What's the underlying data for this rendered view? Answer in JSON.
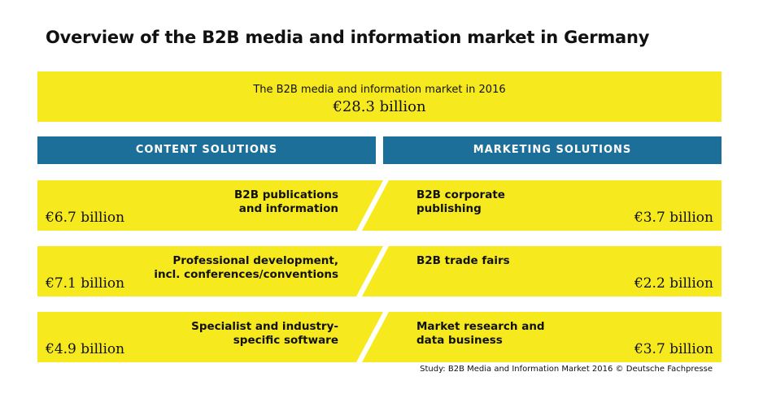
{
  "title": "Overview of the B2B media and information market in Germany",
  "total": {
    "label": "The B2B media and information market in 2016",
    "value": "€28.3 billion"
  },
  "headers": {
    "content": "CONTENT SOLUTIONS",
    "marketing": "MARKETING SOLUTIONS"
  },
  "rows": [
    {
      "left_label": "B2B publications\nand information",
      "left_value": "€6.7 billion",
      "right_label": "B2B corporate\npublishing",
      "right_value": "€3.7 billion"
    },
    {
      "left_label": "Professional development,\nincl. conferences/conventions",
      "left_value": "€7.1 billion",
      "right_label": "B2B trade fairs",
      "right_value": "€2.2 billion"
    },
    {
      "left_label": "Specialist and industry-\nspecific software",
      "left_value": "€4.9 billion",
      "right_label": "Market research and\ndata business",
      "right_value": "€3.7 billion"
    }
  ],
  "source": "Study: B2B Media and Information Market 2016 © Deutsche Fachpresse",
  "colors": {
    "yellow": "#f6ea1e",
    "blue": "#1c6f99"
  }
}
